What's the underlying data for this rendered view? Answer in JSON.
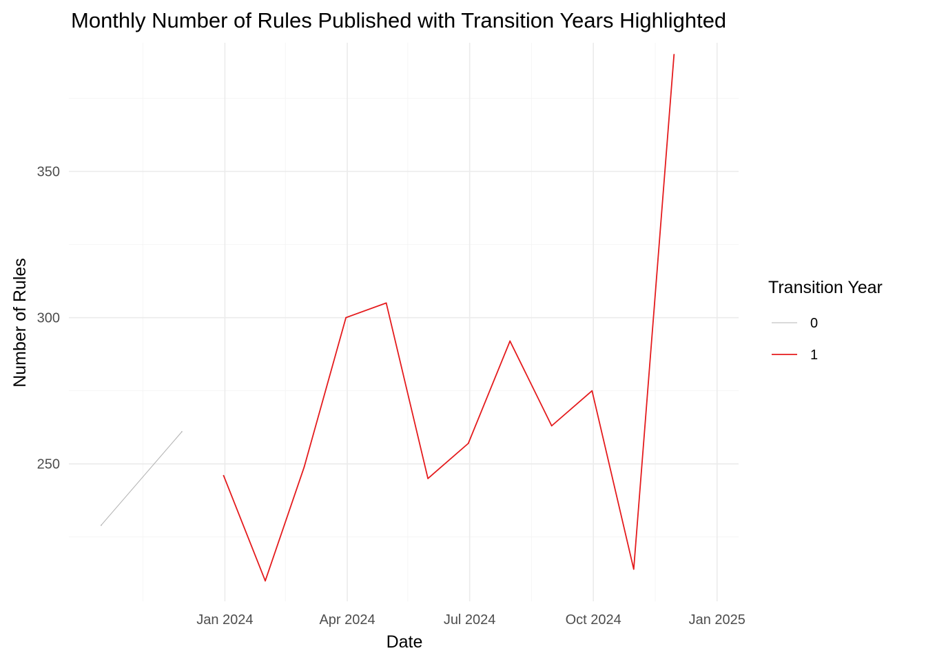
{
  "chart_data": {
    "type": "line",
    "title": "Monthly Number of Rules Published with Transition Years Highlighted",
    "xlabel": "Date",
    "ylabel": "Number of Rules",
    "xlim": [
      "2023-09-07",
      "2025-01-17"
    ],
    "ylim": [
      203,
      394
    ],
    "x_ticks": [
      "2024-01-01",
      "2024-04-01",
      "2024-07-01",
      "2024-10-01",
      "2025-01-01"
    ],
    "x_tick_labels": [
      "Jan 2024",
      "Apr 2024",
      "Jul 2024",
      "Oct 2024",
      "Jan 2025"
    ],
    "x_minor_ticks": [
      "2023-11-01",
      "2024-02-15",
      "2024-05-16",
      "2024-08-16",
      "2024-11-16"
    ],
    "y_ticks": [
      250,
      300,
      350
    ],
    "y_minor_ticks": [
      225,
      275,
      325,
      375
    ],
    "grid": true,
    "legend": {
      "title": "Transition Year",
      "position": "right"
    },
    "series": [
      {
        "name": "0",
        "color": "#b3b3b3",
        "points": [
          {
            "x": "2023-10-01",
            "y": 229
          },
          {
            "x": "2023-11-30",
            "y": 261
          }
        ]
      },
      {
        "name": "1",
        "color": "#e41a1c",
        "points": [
          {
            "x": "2023-12-31",
            "y": 246
          },
          {
            "x": "2024-01-31",
            "y": 210
          },
          {
            "x": "2024-02-29",
            "y": 249
          },
          {
            "x": "2024-03-31",
            "y": 300
          },
          {
            "x": "2024-04-30",
            "y": 305
          },
          {
            "x": "2024-05-31",
            "y": 245
          },
          {
            "x": "2024-06-30",
            "y": 257
          },
          {
            "x": "2024-07-31",
            "y": 292
          },
          {
            "x": "2024-08-31",
            "y": 263
          },
          {
            "x": "2024-09-30",
            "y": 275
          },
          {
            "x": "2024-10-31",
            "y": 214
          },
          {
            "x": "2024-11-30",
            "y": 390
          }
        ]
      }
    ]
  }
}
